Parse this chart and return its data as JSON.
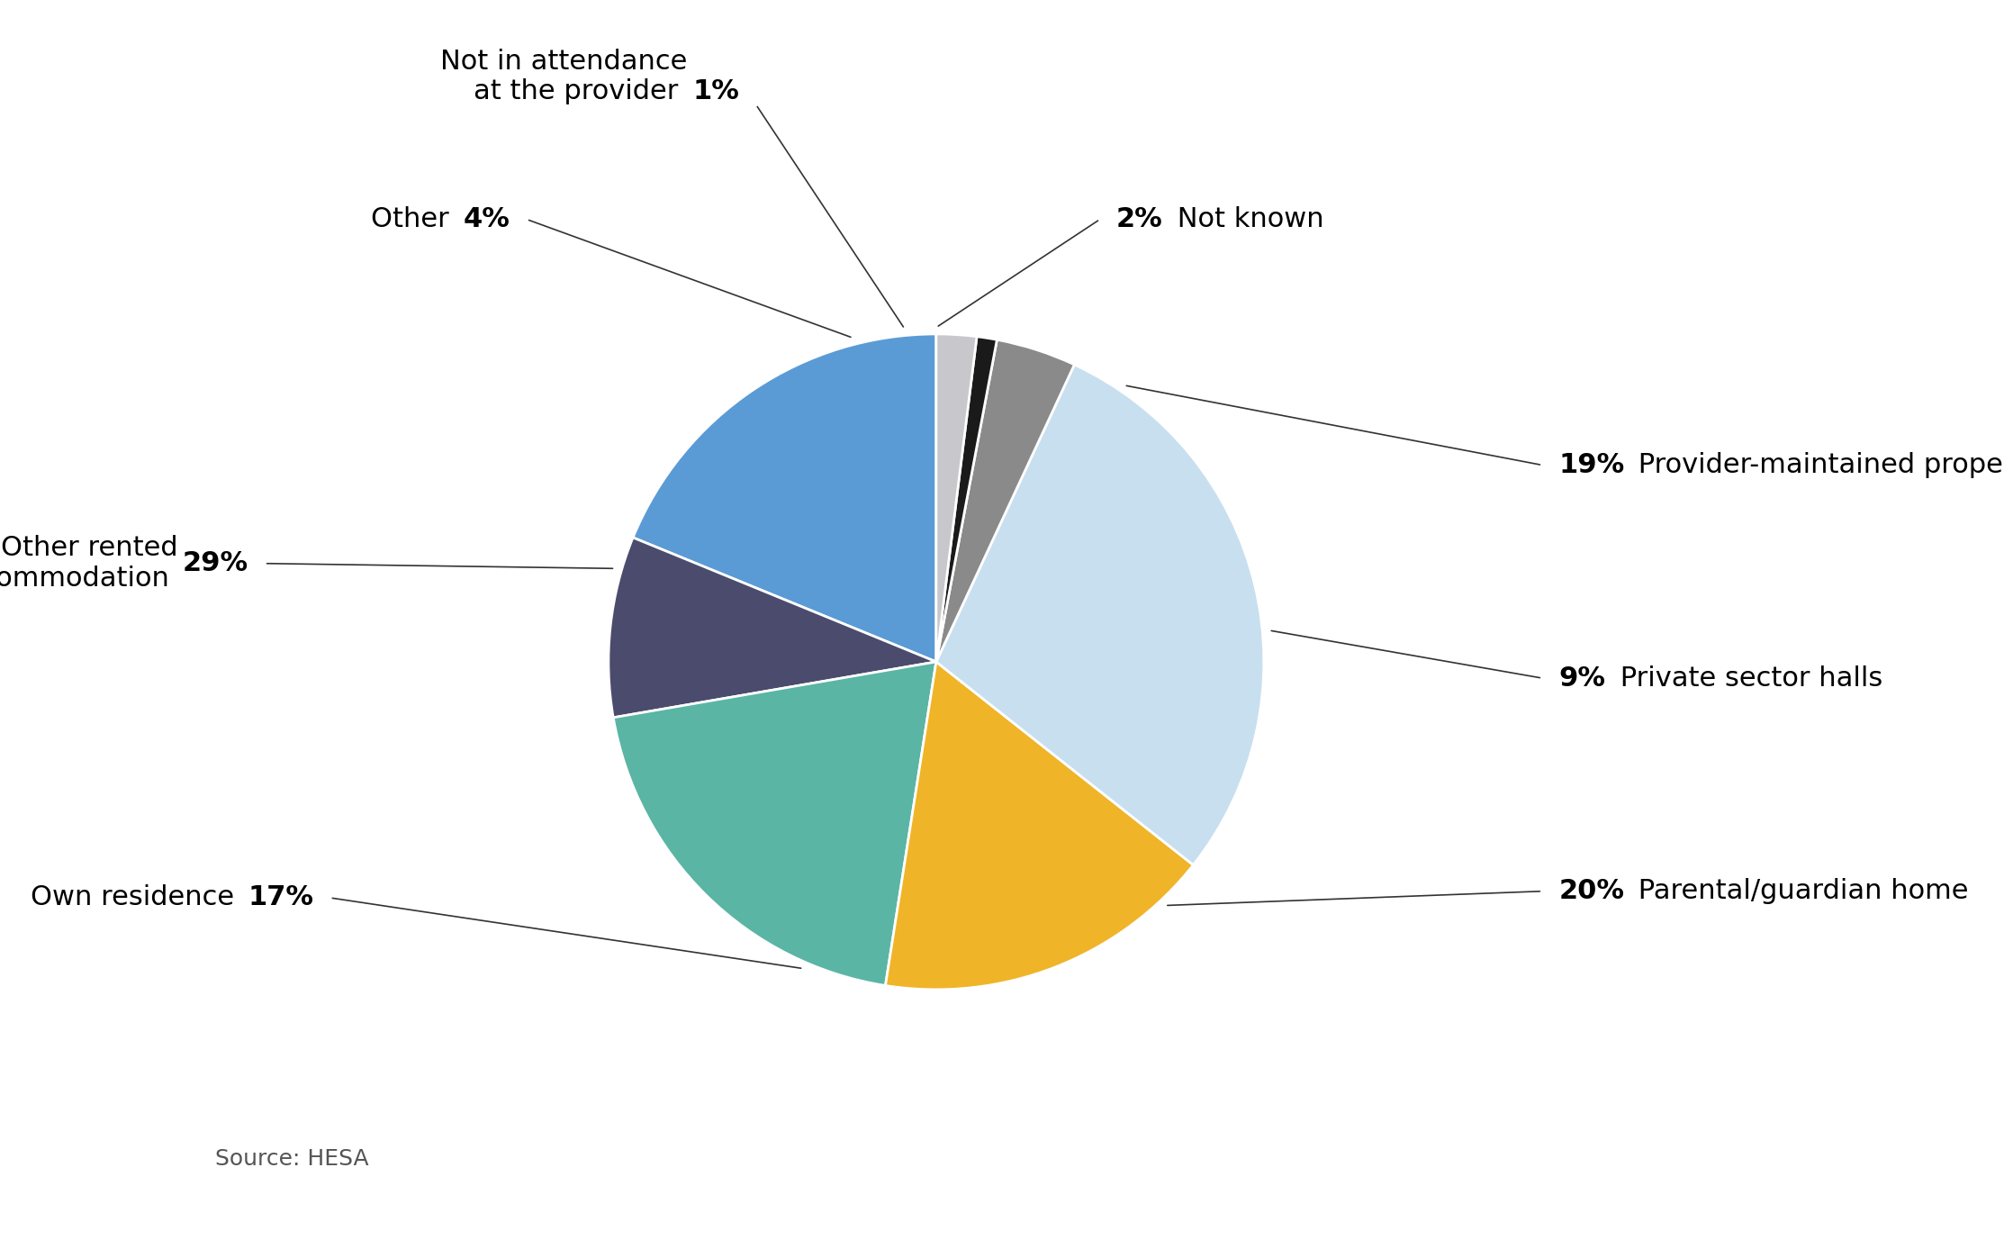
{
  "segments": [
    {
      "label": "Provider-maintained property",
      "pct": 19,
      "color": "#5b9bd5"
    },
    {
      "label": "Private sector halls",
      "pct": 9,
      "color": "#4b4b6e"
    },
    {
      "label": "Parental/guardian home",
      "pct": 20,
      "color": "#5ab5a5"
    },
    {
      "label": "Own residence",
      "pct": 17,
      "color": "#f0b429"
    },
    {
      "label": "Other rented accommodation",
      "pct": 29,
      "color": "#c8dff0"
    },
    {
      "label": "Other",
      "pct": 4,
      "color": "#8a8a8a"
    },
    {
      "label": "Not in attendance at the provider",
      "pct": 1,
      "color": "#1a1a1a"
    },
    {
      "label": "Not known",
      "pct": 2,
      "color": "#c8c8cc"
    }
  ],
  "startangle": 90,
  "source_text": "Source: HESA",
  "figure_width": 22.26,
  "figure_height": 13.97,
  "background_color": "#ffffff",
  "label_fontsize": 22,
  "pct_fontsize": 22,
  "source_fontsize": 18
}
